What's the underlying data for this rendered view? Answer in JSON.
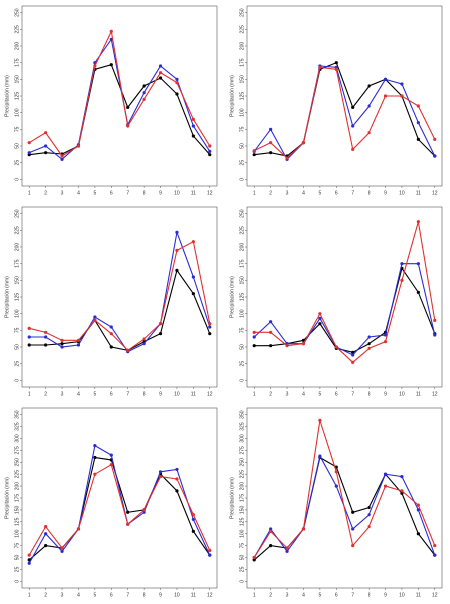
{
  "chart_data": [
    {
      "type": "line",
      "y_label": "Precipitación (mm)",
      "x": [
        1,
        2,
        3,
        4,
        5,
        6,
        7,
        8,
        9,
        10,
        11,
        12
      ],
      "xlim": [
        0.56,
        12.44
      ],
      "ylim": [
        -10,
        260
      ],
      "yticks": [
        0,
        25,
        50,
        75,
        100,
        125,
        150,
        175,
        200,
        225,
        250
      ],
      "series": [
        {
          "color": "#000000",
          "values": [
            37,
            40,
            38,
            50,
            165,
            172,
            108,
            140,
            152,
            128,
            65,
            37
          ]
        },
        {
          "color": "#2b2bd6",
          "values": [
            40,
            50,
            30,
            52,
            175,
            210,
            82,
            130,
            170,
            150,
            80,
            42
          ]
        },
        {
          "color": "#e03030",
          "values": [
            55,
            70,
            35,
            50,
            170,
            222,
            80,
            120,
            160,
            145,
            90,
            50
          ]
        }
      ]
    },
    {
      "type": "line",
      "y_label": "Precipitación (mm)",
      "x": [
        1,
        2,
        3,
        4,
        5,
        6,
        7,
        8,
        9,
        10,
        11,
        12
      ],
      "xlim": [
        0.56,
        12.44
      ],
      "ylim": [
        -10,
        260
      ],
      "yticks": [
        0,
        25,
        50,
        75,
        100,
        125,
        150,
        175,
        200,
        225,
        250
      ],
      "series": [
        {
          "color": "#000000",
          "values": [
            37,
            40,
            35,
            55,
            165,
            175,
            108,
            140,
            150,
            125,
            60,
            35
          ]
        },
        {
          "color": "#2b2bd6",
          "values": [
            42,
            75,
            30,
            55,
            170,
            168,
            80,
            110,
            150,
            143,
            85,
            35
          ]
        },
        {
          "color": "#e03030",
          "values": [
            43,
            55,
            32,
            55,
            168,
            165,
            45,
            70,
            125,
            125,
            110,
            60
          ]
        }
      ]
    },
    {
      "type": "line",
      "y_label": "Precipitación (mm)",
      "x": [
        1,
        2,
        3,
        4,
        5,
        6,
        7,
        8,
        9,
        10,
        11,
        12
      ],
      "xlim": [
        0.56,
        12.44
      ],
      "ylim": [
        -10,
        260
      ],
      "yticks": [
        0,
        25,
        50,
        75,
        100,
        125,
        150,
        175,
        200,
        225,
        250
      ],
      "series": [
        {
          "color": "#000000",
          "values": [
            53,
            53,
            55,
            58,
            90,
            50,
            45,
            58,
            70,
            165,
            130,
            70
          ]
        },
        {
          "color": "#2b2bd6",
          "values": [
            65,
            65,
            50,
            53,
            95,
            80,
            43,
            55,
            85,
            222,
            155,
            80
          ]
        },
        {
          "color": "#e03030",
          "values": [
            78,
            72,
            60,
            60,
            90,
            70,
            45,
            62,
            85,
            195,
            208,
            85
          ]
        }
      ]
    },
    {
      "type": "line",
      "y_label": "Precipitación (mm)",
      "x": [
        1,
        2,
        3,
        4,
        5,
        6,
        7,
        8,
        9,
        10,
        11,
        12
      ],
      "xlim": [
        0.56,
        12.44
      ],
      "ylim": [
        -10,
        260
      ],
      "yticks": [
        0,
        25,
        50,
        75,
        100,
        125,
        150,
        175,
        200,
        225,
        250
      ],
      "series": [
        {
          "color": "#000000",
          "values": [
            52,
            52,
            55,
            60,
            85,
            48,
            42,
            55,
            72,
            168,
            132,
            70
          ]
        },
        {
          "color": "#2b2bd6",
          "values": [
            65,
            88,
            55,
            55,
            93,
            50,
            38,
            65,
            68,
            175,
            175,
            68
          ]
        },
        {
          "color": "#e03030",
          "values": [
            72,
            72,
            52,
            55,
            100,
            50,
            27,
            48,
            58,
            150,
            238,
            90
          ]
        }
      ]
    },
    {
      "type": "line",
      "y_label": "Precipitación (mm)",
      "x": [
        1,
        2,
        3,
        4,
        5,
        6,
        7,
        8,
        9,
        10,
        11,
        12
      ],
      "xlim": [
        0.56,
        12.44
      ],
      "ylim": [
        -14,
        364
      ],
      "yticks": [
        0,
        25,
        50,
        75,
        100,
        125,
        150,
        175,
        200,
        225,
        250,
        275,
        300,
        325,
        350
      ],
      "series": [
        {
          "color": "#000000",
          "values": [
            45,
            75,
            70,
            110,
            260,
            255,
            145,
            150,
            225,
            190,
            105,
            55
          ]
        },
        {
          "color": "#2b2bd6",
          "values": [
            38,
            100,
            63,
            110,
            285,
            265,
            120,
            145,
            230,
            235,
            130,
            55
          ]
        },
        {
          "color": "#e03030",
          "values": [
            55,
            115,
            70,
            110,
            225,
            245,
            120,
            150,
            220,
            215,
            140,
            65
          ]
        }
      ]
    },
    {
      "type": "line",
      "y_label": "Precipitación (mm)",
      "x": [
        1,
        2,
        3,
        4,
        5,
        6,
        7,
        8,
        9,
        10,
        11,
        12
      ],
      "xlim": [
        0.56,
        12.44
      ],
      "ylim": [
        -14,
        364
      ],
      "yticks": [
        0,
        25,
        50,
        75,
        100,
        125,
        150,
        175,
        200,
        225,
        250,
        275,
        300,
        325,
        350
      ],
      "series": [
        {
          "color": "#000000",
          "values": [
            45,
            75,
            70,
            110,
            260,
            240,
            145,
            155,
            225,
            185,
            100,
            55
          ]
        },
        {
          "color": "#2b2bd6",
          "values": [
            50,
            110,
            63,
            110,
            263,
            200,
            110,
            140,
            225,
            220,
            150,
            55
          ]
        },
        {
          "color": "#e03030",
          "values": [
            50,
            105,
            70,
            110,
            338,
            230,
            75,
            115,
            200,
            190,
            160,
            75
          ]
        }
      ]
    }
  ]
}
